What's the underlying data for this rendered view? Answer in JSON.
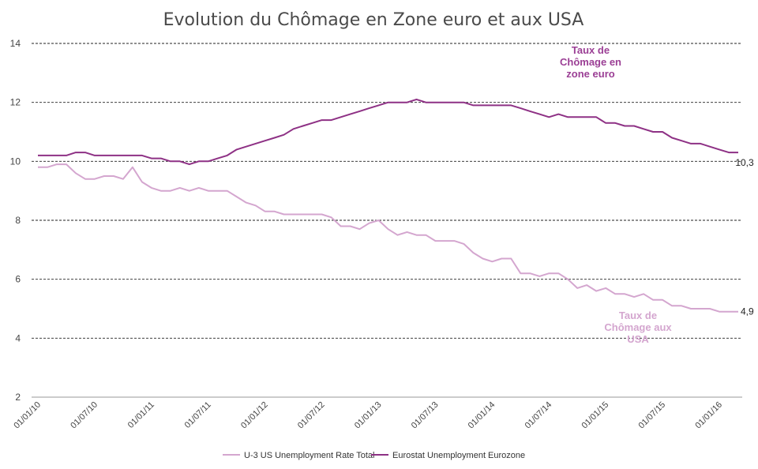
{
  "chart_data": {
    "type": "line",
    "title": "Evolution  du Chômage en Zone euro et aux USA",
    "xlabel": "",
    "ylabel": "",
    "ylim": [
      2,
      14
    ],
    "yticks": [
      2,
      4,
      6,
      8,
      10,
      12,
      14
    ],
    "grid": true,
    "legend_position": "bottom",
    "x_tick_labels": [
      "01/01/10",
      "01/07/10",
      "01/01/11",
      "01/07/11",
      "01/01/12",
      "01/07/12",
      "01/01/13",
      "01/07/13",
      "01/01/14",
      "01/07/14",
      "01/01/15",
      "01/07/15",
      "01/01/16"
    ],
    "x_start": "01/01/10",
    "x_end": "01/04/16",
    "series": [
      {
        "name": "U-3 US Unemployment Rate Total",
        "color": "#d4a6cf",
        "values": [
          9.8,
          9.8,
          9.9,
          9.9,
          9.6,
          9.4,
          9.4,
          9.5,
          9.5,
          9.4,
          9.8,
          9.3,
          9.1,
          9.0,
          9.0,
          9.1,
          9.0,
          9.1,
          9.0,
          9.0,
          9.0,
          8.8,
          8.6,
          8.5,
          8.3,
          8.3,
          8.2,
          8.2,
          8.2,
          8.2,
          8.2,
          8.1,
          7.8,
          7.8,
          7.7,
          7.9,
          8.0,
          7.7,
          7.5,
          7.6,
          7.5,
          7.5,
          7.3,
          7.3,
          7.3,
          7.2,
          6.9,
          6.7,
          6.6,
          6.7,
          6.7,
          6.2,
          6.2,
          6.1,
          6.2,
          6.2,
          6.0,
          5.7,
          5.8,
          5.6,
          5.7,
          5.5,
          5.5,
          5.4,
          5.5,
          5.3,
          5.3,
          5.1,
          5.1,
          5.0,
          5.0,
          5.0,
          4.9,
          4.9,
          4.9
        ]
      },
      {
        "name": "Eurostat Unemployment Eurozone",
        "color": "#8e3185",
        "values": [
          10.2,
          10.2,
          10.2,
          10.2,
          10.3,
          10.3,
          10.2,
          10.2,
          10.2,
          10.2,
          10.2,
          10.2,
          10.1,
          10.1,
          10.0,
          10.0,
          9.9,
          10.0,
          10.0,
          10.1,
          10.2,
          10.4,
          10.5,
          10.6,
          10.7,
          10.8,
          10.9,
          11.1,
          11.2,
          11.3,
          11.4,
          11.4,
          11.5,
          11.6,
          11.7,
          11.8,
          11.9,
          12.0,
          12.0,
          12.0,
          12.1,
          12.0,
          12.0,
          12.0,
          12.0,
          12.0,
          11.9,
          11.9,
          11.9,
          11.9,
          11.9,
          11.8,
          11.7,
          11.6,
          11.5,
          11.6,
          11.5,
          11.5,
          11.5,
          11.5,
          11.3,
          11.3,
          11.2,
          11.2,
          11.1,
          11.0,
          11.0,
          10.8,
          10.7,
          10.6,
          10.6,
          10.5,
          10.4,
          10.3,
          10.3
        ]
      }
    ],
    "annotations": [
      {
        "name": "eurozone-annotation",
        "lines": [
          "Taux de",
          "Chômage en",
          "zone euro"
        ],
        "color": "#9b3f95"
      },
      {
        "name": "usa-annotation",
        "lines": [
          "Taux de",
          "Chômage  aux",
          "USA"
        ],
        "color": "#d4a6cf"
      }
    ],
    "end_labels": [
      {
        "series": "Eurostat Unemployment Eurozone",
        "text": "10,3"
      },
      {
        "series": "U-3 US Unemployment Rate Total",
        "text": "4,9"
      }
    ]
  }
}
